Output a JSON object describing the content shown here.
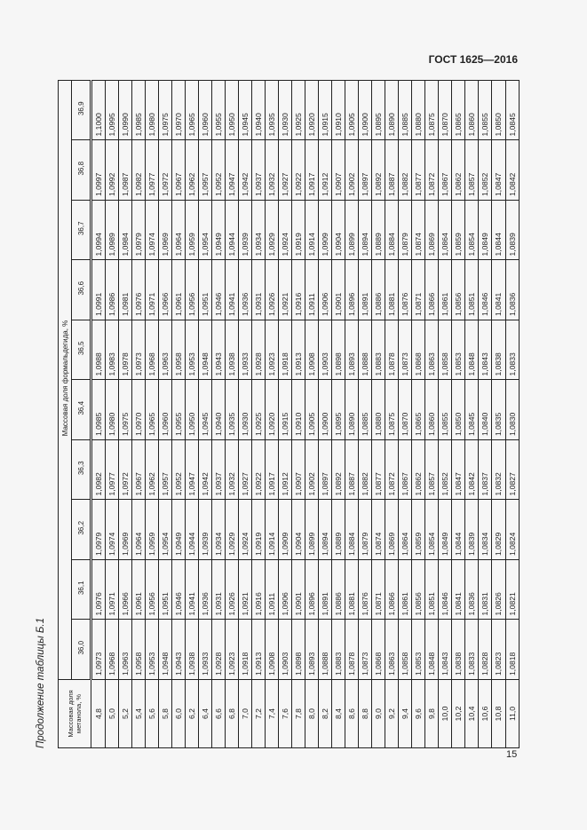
{
  "header": {
    "doc_code": "ГОСТ 1625—2016"
  },
  "caption": "Продолжение таблицы Б.1",
  "page_number": "15",
  "table": {
    "row_header": "Массовая доля метанола, %",
    "column_group_header": "Массовая доля формальдегида, %",
    "columns": [
      "36,0",
      "36,1",
      "36,2",
      "36,3",
      "36,4",
      "36,5",
      "36,6",
      "36,7",
      "36,8",
      "36,9"
    ],
    "rows": [
      {
        "label": "4,8",
        "values": [
          "1,0973",
          "1,0976",
          "1,0979",
          "1,0982",
          "1,0985",
          "1,0988",
          "1,0991",
          "1,0994",
          "1,0997",
          "1,1000"
        ]
      },
      {
        "label": "5,0",
        "values": [
          "1,0968",
          "1,0971",
          "1,0974",
          "1,0977",
          "1,0980",
          "1,0983",
          "1,0986",
          "1,0989",
          "1,0992",
          "1,0995"
        ]
      },
      {
        "label": "5,2",
        "values": [
          "1,0963",
          "1,0966",
          "1,0969",
          "1,0972",
          "1,0975",
          "1,0978",
          "1,0981",
          "1,0984",
          "1,0987",
          "1,0990"
        ]
      },
      {
        "label": "5,4",
        "values": [
          "1,0958",
          "1,0961",
          "1,0964",
          "1,0967",
          "1,0970",
          "1,0973",
          "1,0976",
          "1,0979",
          "1,0982",
          "1,0985"
        ]
      },
      {
        "label": "5,6",
        "values": [
          "1,0953",
          "1,0956",
          "1,0959",
          "1,0962",
          "1,0965",
          "1,0968",
          "1,0971",
          "1,0974",
          "1,0977",
          "1,0980"
        ]
      },
      {
        "label": "5,8",
        "values": [
          "1,0948",
          "1,0951",
          "1,0954",
          "1,0957",
          "1,0960",
          "1,0963",
          "1,0966",
          "1,0969",
          "1,0972",
          "1,0975"
        ]
      },
      {
        "label": "6,0",
        "values": [
          "1,0943",
          "1,0946",
          "1,0949",
          "1,0952",
          "1,0955",
          "1,0958",
          "1,0961",
          "1,0964",
          "1,0967",
          "1,0970"
        ]
      },
      {
        "label": "6,2",
        "values": [
          "1,0938",
          "1,0941",
          "1,0944",
          "1,0947",
          "1,0950",
          "1,0953",
          "1,0956",
          "1,0959",
          "1,0962",
          "1,0965"
        ]
      },
      {
        "label": "6,4",
        "values": [
          "1,0933",
          "1,0936",
          "1,0939",
          "1,0942",
          "1,0945",
          "1,0948",
          "1,0951",
          "1,0954",
          "1,0957",
          "1,0960"
        ]
      },
      {
        "label": "6,6",
        "values": [
          "1,0928",
          "1,0931",
          "1,0934",
          "1,0937",
          "1,0940",
          "1,0943",
          "1,0946",
          "1,0949",
          "1,0952",
          "1,0955"
        ]
      },
      {
        "label": "6,8",
        "values": [
          "1,0923",
          "1,0926",
          "1,0929",
          "1,0932",
          "1,0935",
          "1,0938",
          "1,0941",
          "1,0944",
          "1,0947",
          "1,0950"
        ]
      },
      {
        "label": "7,0",
        "values": [
          "1,0918",
          "1,0921",
          "1,0924",
          "1,0927",
          "1,0930",
          "1,0933",
          "1,0936",
          "1,0939",
          "1,0942",
          "1,0945"
        ]
      },
      {
        "label": "7,2",
        "values": [
          "1,0913",
          "1,0916",
          "1,0919",
          "1,0922",
          "1,0925",
          "1,0928",
          "1,0931",
          "1,0934",
          "1,0937",
          "1,0940"
        ]
      },
      {
        "label": "7,4",
        "values": [
          "1,0908",
          "1,0911",
          "1,0914",
          "1,0917",
          "1,0920",
          "1,0923",
          "1,0926",
          "1,0929",
          "1,0932",
          "1,0935"
        ]
      },
      {
        "label": "7,6",
        "values": [
          "1,0903",
          "1,0906",
          "1,0909",
          "1,0912",
          "1,0915",
          "1,0918",
          "1,0921",
          "1,0924",
          "1,0927",
          "1,0930"
        ]
      },
      {
        "label": "7,8",
        "values": [
          "1,0898",
          "1,0901",
          "1,0904",
          "1,0907",
          "1,0910",
          "1,0913",
          "1,0916",
          "1,0919",
          "1,0922",
          "1,0925"
        ]
      },
      {
        "label": "8,0",
        "values": [
          "1,0893",
          "1,0896",
          "1,0899",
          "1,0902",
          "1,0905",
          "1,0908",
          "1,0911",
          "1,0914",
          "1,0917",
          "1,0920"
        ]
      },
      {
        "label": "8,2",
        "values": [
          "1,0888",
          "1,0891",
          "1,0894",
          "1,0897",
          "1,0900",
          "1,0903",
          "1,0906",
          "1,0909",
          "1,0912",
          "1,0915"
        ]
      },
      {
        "label": "8,4",
        "values": [
          "1,0883",
          "1,0886",
          "1,0889",
          "1,0892",
          "1,0895",
          "1,0898",
          "1,0901",
          "1,0904",
          "1,0907",
          "1,0910"
        ]
      },
      {
        "label": "8,6",
        "values": [
          "1,0878",
          "1,0881",
          "1,0884",
          "1,0887",
          "1,0890",
          "1,0893",
          "1,0896",
          "1,0899",
          "1,0902",
          "1,0905"
        ]
      },
      {
        "label": "8,8",
        "values": [
          "1,0873",
          "1,0876",
          "1,0879",
          "1,0882",
          "1,0885",
          "1,0888",
          "1,0891",
          "1,0894",
          "1,0897",
          "1,0900"
        ]
      },
      {
        "label": "9,0",
        "values": [
          "1,0868",
          "1,0871",
          "1,0874",
          "1,0877",
          "1,0880",
          "1,0883",
          "1,0886",
          "1,0889",
          "1,0892",
          "1,0895"
        ]
      },
      {
        "label": "9,2",
        "values": [
          "1,0863",
          "1,0866",
          "1,0869",
          "1,0872",
          "1,0875",
          "1,0878",
          "1,0881",
          "1,0884",
          "1,0887",
          "1,0890"
        ]
      },
      {
        "label": "9,4",
        "values": [
          "1,0858",
          "1,0861",
          "1,0864",
          "1,0867",
          "1,0870",
          "1,0873",
          "1,0876",
          "1,0879",
          "1,0882",
          "1,0885"
        ]
      },
      {
        "label": "9,6",
        "values": [
          "1,0853",
          "1,0856",
          "1,0859",
          "1,0862",
          "1,0865",
          "1,0868",
          "1,0871",
          "1,0874",
          "1,0877",
          "1,0880"
        ]
      },
      {
        "label": "9,8",
        "values": [
          "1,0848",
          "1,0851",
          "1,0854",
          "1,0857",
          "1,0860",
          "1,0863",
          "1,0866",
          "1,0869",
          "1,0872",
          "1,0875"
        ]
      },
      {
        "label": "10,0",
        "values": [
          "1,0843",
          "1,0846",
          "1,0849",
          "1,0852",
          "1,0855",
          "1,0858",
          "1,0861",
          "1,0864",
          "1,0867",
          "1,0870"
        ]
      },
      {
        "label": "10,2",
        "values": [
          "1,0838",
          "1,0841",
          "1,0844",
          "1,0847",
          "1,0850",
          "1,0853",
          "1,0856",
          "1,0859",
          "1,0862",
          "1,0865"
        ]
      },
      {
        "label": "10,4",
        "values": [
          "1,0833",
          "1,0836",
          "1,0839",
          "1,0842",
          "1,0845",
          "1,0848",
          "1,0851",
          "1,0854",
          "1,0857",
          "1,0860"
        ]
      },
      {
        "label": "10,6",
        "values": [
          "1,0828",
          "1,0831",
          "1,0834",
          "1,0837",
          "1,0840",
          "1,0843",
          "1,0846",
          "1,0849",
          "1,0852",
          "1,0855"
        ]
      },
      {
        "label": "10,8",
        "values": [
          "1,0823",
          "1,0826",
          "1,0829",
          "1,0832",
          "1,0835",
          "1,0838",
          "1,0841",
          "1,0844",
          "1,0847",
          "1,0850"
        ]
      },
      {
        "label": "11,0",
        "values": [
          "1,0818",
          "1,0821",
          "1,0824",
          "1,0827",
          "1,0830",
          "1,0833",
          "1,0836",
          "1,0839",
          "1,0842",
          "1,0845"
        ]
      }
    ]
  }
}
